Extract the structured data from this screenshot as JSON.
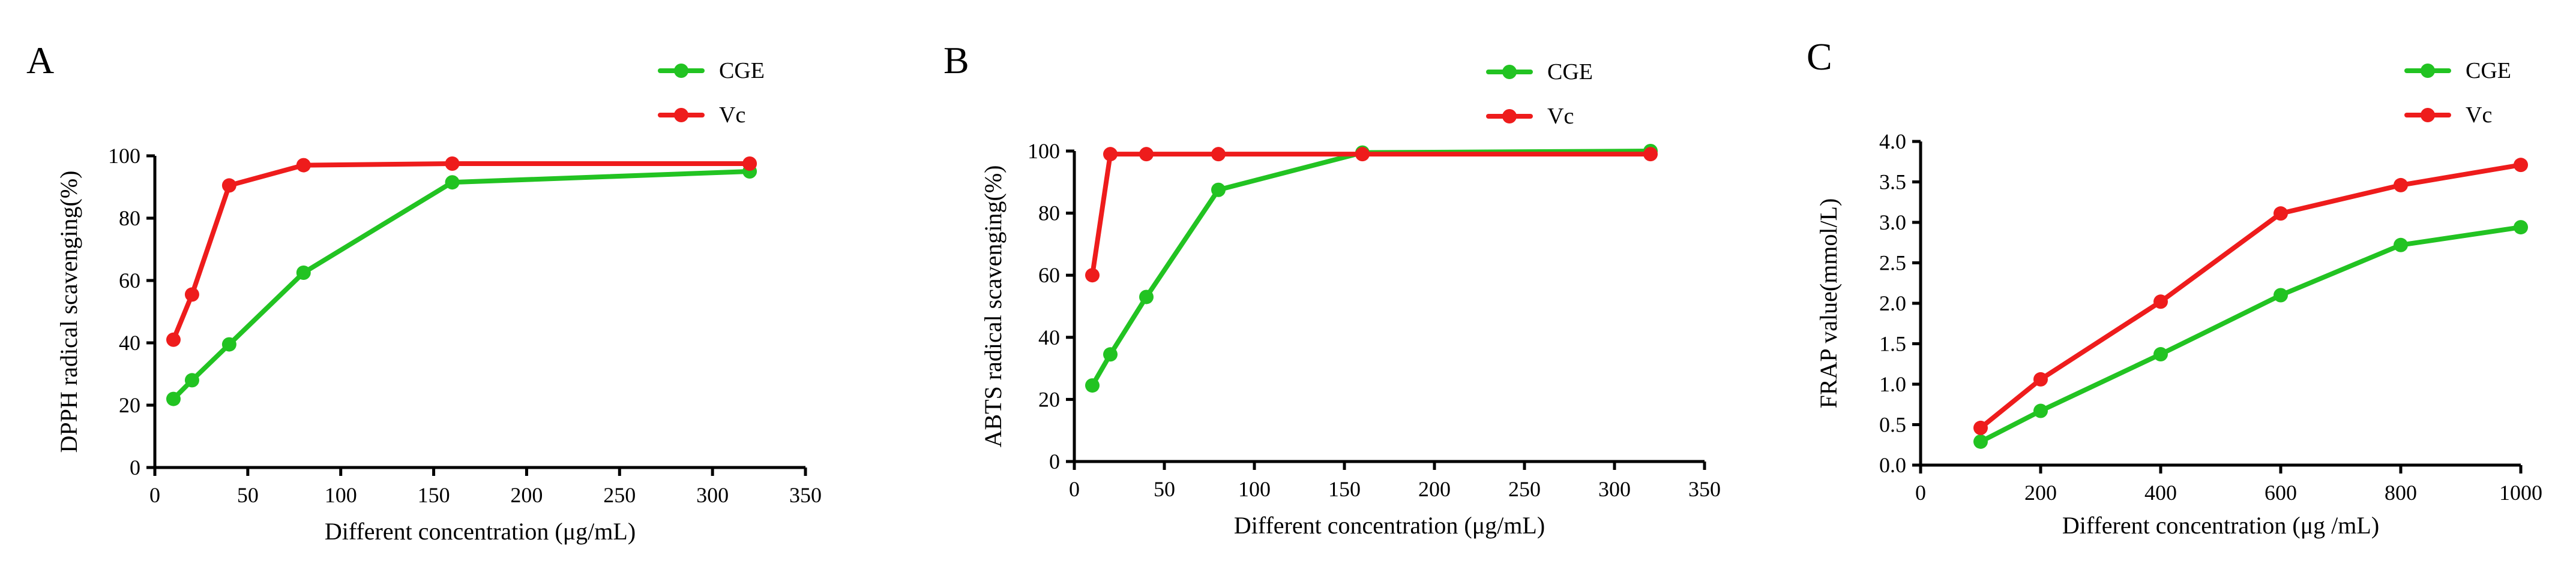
{
  "chart_data": [
    {
      "panel_label": "A",
      "type": "line",
      "xlabel": "Different concentration (μg/mL)",
      "ylabel": "DPPH radical scavenging(%)",
      "xlim": [
        0,
        350
      ],
      "ylim": [
        0,
        100
      ],
      "xticks": [
        0,
        50,
        100,
        150,
        200,
        250,
        300,
        350
      ],
      "yticks": [
        0,
        20,
        40,
        60,
        80,
        100
      ],
      "legend": [
        "CGE",
        "Vc"
      ],
      "series": [
        {
          "name": "CGE",
          "color": "#22c322",
          "x": [
            10,
            20,
            40,
            80,
            160,
            320
          ],
          "values": [
            22,
            28,
            39.5,
            62.5,
            91.5,
            95
          ]
        },
        {
          "name": "Vc",
          "color": "#ee1c1c",
          "x": [
            10,
            20,
            40,
            80,
            160,
            320
          ],
          "values": [
            41,
            55.5,
            90.5,
            97,
            97.5,
            97.5
          ]
        }
      ]
    },
    {
      "panel_label": "B",
      "type": "line",
      "xlabel": "Different concentration (μg/mL)",
      "ylabel": "ABTS radical scavenging(%)",
      "xlim": [
        0,
        350
      ],
      "ylim": [
        0,
        100
      ],
      "xticks": [
        0,
        50,
        100,
        150,
        200,
        250,
        300,
        350
      ],
      "yticks": [
        0,
        20,
        40,
        60,
        80,
        100
      ],
      "legend": [
        "CGE",
        "Vc"
      ],
      "series": [
        {
          "name": "CGE",
          "color": "#22c322",
          "x": [
            10,
            20,
            40,
            80,
            160,
            320
          ],
          "values": [
            24.5,
            34.5,
            53,
            87.5,
            99.5,
            100
          ]
        },
        {
          "name": "Vc",
          "color": "#ee1c1c",
          "x": [
            10,
            20,
            40,
            80,
            160,
            320
          ],
          "values": [
            60,
            99,
            99,
            99,
            99,
            99
          ]
        }
      ]
    },
    {
      "panel_label": "C",
      "type": "line",
      "xlabel": "Different concentration (μg /mL)",
      "ylabel": "FRAP value(mmol/L)",
      "xlim": [
        0,
        1000
      ],
      "ylim": [
        0,
        4.0
      ],
      "xticks": [
        0,
        200,
        400,
        600,
        800,
        1000
      ],
      "yticks": [
        "0.0",
        "0.5",
        "1.0",
        "1.5",
        "2.0",
        "2.5",
        "3.0",
        "3.5",
        "4.0"
      ],
      "legend": [
        "CGE",
        "Vc"
      ],
      "series": [
        {
          "name": "CGE",
          "color": "#22c322",
          "x": [
            100,
            200,
            400,
            600,
            800,
            1000
          ],
          "values": [
            0.29,
            0.67,
            1.37,
            2.1,
            2.72,
            2.94
          ]
        },
        {
          "name": "Vc",
          "color": "#ee1c1c",
          "x": [
            100,
            200,
            400,
            600,
            800,
            1000
          ],
          "values": [
            0.46,
            1.06,
            2.02,
            3.11,
            3.46,
            3.71
          ]
        }
      ]
    }
  ]
}
